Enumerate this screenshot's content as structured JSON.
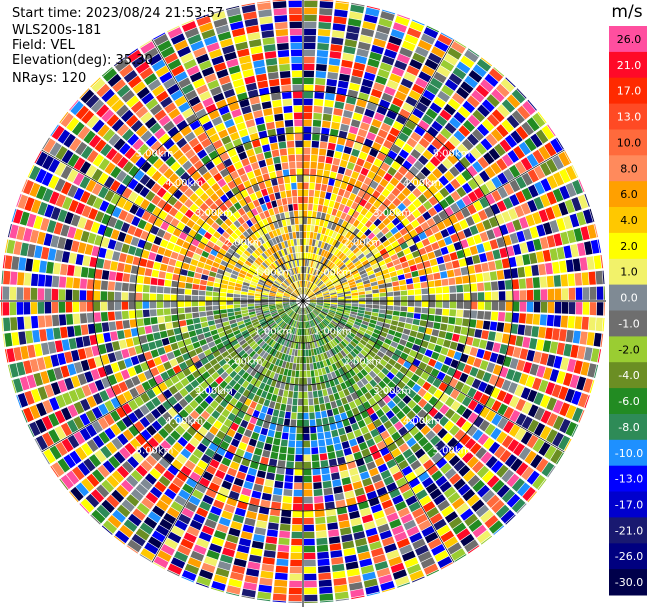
{
  "chart_data": {
    "type": "heatmap",
    "info": {
      "start_time": "Start time: 2023/08/24 21:53:57",
      "instrument": "WLS200s-181",
      "field": "Field: VEL",
      "elevation": "Elevation(deg): 35.30",
      "nrays": "NRays: 120"
    },
    "colorbar": {
      "unit": "m/s",
      "levels": [
        {
          "label": "26.0",
          "color": "#ff4f9f"
        },
        {
          "label": "21.0",
          "color": "#ff0a28"
        },
        {
          "label": "17.0",
          "color": "#ff2a00"
        },
        {
          "label": "13.0",
          "color": "#ff4a24"
        },
        {
          "label": "10.0",
          "color": "#ff6a3c"
        },
        {
          "label": "8.0",
          "color": "#ff8a5c"
        },
        {
          "label": "6.0",
          "color": "#ffa000"
        },
        {
          "label": "4.0",
          "color": "#ffc800"
        },
        {
          "label": "2.0",
          "color": "#ffff00"
        },
        {
          "label": "1.0",
          "color": "#f2f26a"
        },
        {
          "label": "0.0",
          "color": "#7f8a94"
        },
        {
          "label": "-1.0",
          "color": "#6e6e6e"
        },
        {
          "label": "-2.0",
          "color": "#9acd32"
        },
        {
          "label": "-4.0",
          "color": "#6b8e23"
        },
        {
          "label": "-6.0",
          "color": "#228b22"
        },
        {
          "label": "-8.0",
          "color": "#2e8b57"
        },
        {
          "label": "-10.0",
          "color": "#1e90ff"
        },
        {
          "label": "-13.0",
          "color": "#0000ff"
        },
        {
          "label": "-17.0",
          "color": "#0000cd"
        },
        {
          "label": "-21.0",
          "color": "#191970"
        },
        {
          "label": "-26.0",
          "color": "#000080"
        },
        {
          "label": "-30.0",
          "color": "#00004a"
        }
      ]
    },
    "range_rings_km": [
      1,
      2,
      3,
      4,
      5
    ],
    "ring_labels": {
      "1": "1.00km",
      "2": "2.00km",
      "3": "3.00km",
      "4": "4.00km",
      "5": "5.00km"
    },
    "nrays": 120,
    "max_range_km": 6.9
  }
}
